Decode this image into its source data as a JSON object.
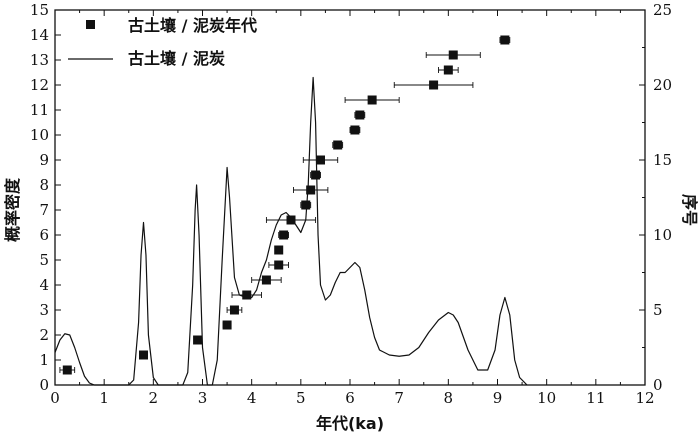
{
  "chart_data": {
    "type": "line+scatter",
    "xlabel": "年代(ka)",
    "ylabel_left": "概率密度",
    "ylabel_right": "序号",
    "xlim": [
      0,
      12
    ],
    "ylim_left": [
      0,
      15
    ],
    "ylim_right": [
      0,
      25
    ],
    "x_ticks": [
      "0",
      "1",
      "2",
      "3",
      "4",
      "5",
      "6",
      "7",
      "8",
      "9",
      "10",
      "11",
      "12"
    ],
    "y_left_ticks": [
      "0",
      "1",
      "2",
      "3",
      "4",
      "5",
      "6",
      "7",
      "8",
      "9",
      "10",
      "11",
      "12",
      "13",
      "14",
      "15"
    ],
    "y_right_ticks": [
      "0",
      "5",
      "10",
      "15",
      "20",
      "25"
    ],
    "grid": false,
    "legend": {
      "position": "top-left",
      "entries": [
        {
          "label": "古土壤 / 泥炭年代",
          "marker": "square"
        },
        {
          "label": "古土壤 / 泥炭",
          "marker": "line"
        }
      ]
    },
    "series": [
      {
        "label": "古土壤 / 泥炭年代",
        "kind": "scatter",
        "axis": "right",
        "points": [
          {
            "x": 0.25,
            "y": 1,
            "xerr": 0.15
          },
          {
            "x": 1.8,
            "y": 2,
            "xerr": 0.05
          },
          {
            "x": 2.9,
            "y": 3,
            "xerr": 0.07
          },
          {
            "x": 3.5,
            "y": 4,
            "xerr": 0.08
          },
          {
            "x": 3.65,
            "y": 5,
            "xerr": 0.15
          },
          {
            "x": 3.9,
            "y": 6,
            "xerr": 0.3
          },
          {
            "x": 4.3,
            "y": 7,
            "xerr": 0.3
          },
          {
            "x": 4.55,
            "y": 8,
            "xerr": 0.2
          },
          {
            "x": 4.55,
            "y": 9,
            "xerr": 0.07
          },
          {
            "x": 4.65,
            "y": 10,
            "xerr": 0.1
          },
          {
            "x": 4.8,
            "y": 11,
            "xerr": 0.5
          },
          {
            "x": 5.1,
            "y": 12,
            "xerr": 0.1
          },
          {
            "x": 5.2,
            "y": 13,
            "xerr": 0.35
          },
          {
            "x": 5.3,
            "y": 14,
            "xerr": 0.1
          },
          {
            "x": 5.4,
            "y": 15,
            "xerr": 0.35
          },
          {
            "x": 5.75,
            "y": 16,
            "xerr": 0.1
          },
          {
            "x": 6.1,
            "y": 17,
            "xerr": 0.1
          },
          {
            "x": 6.2,
            "y": 18,
            "xerr": 0.1
          },
          {
            "x": 6.45,
            "y": 19,
            "xerr": 0.55
          },
          {
            "x": 7.7,
            "y": 20,
            "xerr": 0.8
          },
          {
            "x": 8.0,
            "y": 21,
            "xerr": 0.2
          },
          {
            "x": 8.1,
            "y": 22,
            "xerr": 0.55
          },
          {
            "x": 9.15,
            "y": 23,
            "xerr": 0.1
          }
        ]
      },
      {
        "label": "古土壤 / 泥炭",
        "kind": "line",
        "axis": "left",
        "points": [
          [
            0.0,
            1.3
          ],
          [
            0.1,
            1.8
          ],
          [
            0.2,
            2.05
          ],
          [
            0.3,
            2.0
          ],
          [
            0.4,
            1.5
          ],
          [
            0.5,
            0.9
          ],
          [
            0.6,
            0.35
          ],
          [
            0.7,
            0.08
          ],
          [
            0.8,
            0.0
          ],
          [
            1.5,
            0.0
          ],
          [
            1.6,
            0.2
          ],
          [
            1.7,
            2.5
          ],
          [
            1.75,
            5.2
          ],
          [
            1.8,
            6.5
          ],
          [
            1.85,
            5.2
          ],
          [
            1.9,
            2.0
          ],
          [
            2.0,
            0.3
          ],
          [
            2.1,
            0.0
          ],
          [
            2.6,
            0.0
          ],
          [
            2.7,
            0.5
          ],
          [
            2.8,
            4.0
          ],
          [
            2.85,
            7.0
          ],
          [
            2.88,
            8.0
          ],
          [
            2.93,
            6.0
          ],
          [
            3.0,
            1.5
          ],
          [
            3.1,
            0.0
          ],
          [
            3.2,
            0.0
          ],
          [
            3.3,
            1.0
          ],
          [
            3.4,
            5.0
          ],
          [
            3.5,
            8.7
          ],
          [
            3.55,
            7.5
          ],
          [
            3.65,
            4.3
          ],
          [
            3.75,
            3.6
          ],
          [
            3.9,
            3.5
          ],
          [
            4.0,
            3.5
          ],
          [
            4.1,
            3.8
          ],
          [
            4.2,
            4.5
          ],
          [
            4.3,
            5.0
          ],
          [
            4.4,
            5.8
          ],
          [
            4.5,
            6.4
          ],
          [
            4.6,
            6.8
          ],
          [
            4.7,
            6.9
          ],
          [
            4.8,
            6.7
          ],
          [
            4.9,
            6.4
          ],
          [
            5.0,
            6.1
          ],
          [
            5.1,
            6.6
          ],
          [
            5.15,
            8.0
          ],
          [
            5.2,
            10.5
          ],
          [
            5.25,
            12.3
          ],
          [
            5.3,
            10.5
          ],
          [
            5.35,
            6.0
          ],
          [
            5.4,
            4.0
          ],
          [
            5.5,
            3.4
          ],
          [
            5.6,
            3.6
          ],
          [
            5.7,
            4.1
          ],
          [
            5.8,
            4.5
          ],
          [
            5.9,
            4.5
          ],
          [
            6.0,
            4.7
          ],
          [
            6.1,
            4.9
          ],
          [
            6.2,
            4.7
          ],
          [
            6.3,
            3.8
          ],
          [
            6.4,
            2.7
          ],
          [
            6.5,
            1.9
          ],
          [
            6.6,
            1.4
          ],
          [
            6.8,
            1.2
          ],
          [
            7.0,
            1.15
          ],
          [
            7.2,
            1.2
          ],
          [
            7.4,
            1.5
          ],
          [
            7.6,
            2.1
          ],
          [
            7.8,
            2.6
          ],
          [
            8.0,
            2.9
          ],
          [
            8.1,
            2.8
          ],
          [
            8.2,
            2.5
          ],
          [
            8.4,
            1.4
          ],
          [
            8.6,
            0.6
          ],
          [
            8.8,
            0.6
          ],
          [
            8.95,
            1.4
          ],
          [
            9.05,
            2.8
          ],
          [
            9.15,
            3.5
          ],
          [
            9.25,
            2.8
          ],
          [
            9.35,
            1.0
          ],
          [
            9.45,
            0.3
          ],
          [
            9.6,
            0.0
          ]
        ]
      }
    ]
  }
}
